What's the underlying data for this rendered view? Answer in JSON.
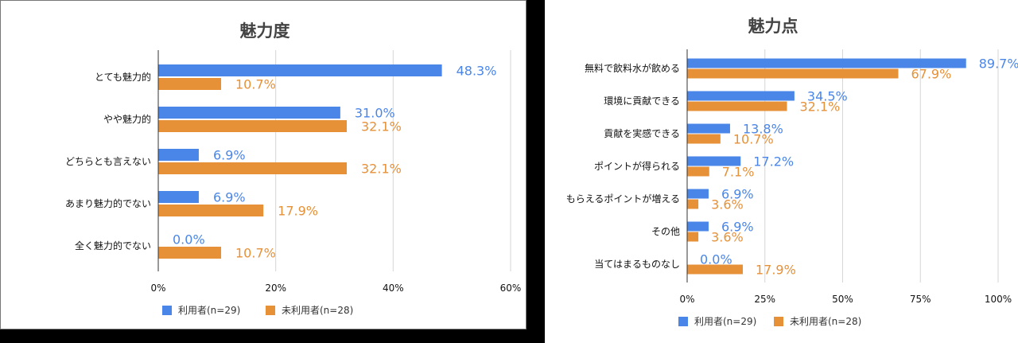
{
  "colors": {
    "users": "#4a86e8",
    "nonusers": "#e69138"
  },
  "chart_data": [
    {
      "type": "bar",
      "orientation": "horizontal",
      "title": "魅力度",
      "categories": [
        "とても魅力的",
        "やや魅力的",
        "どちらとも言えない",
        "あまり魅力的でない",
        "全く魅力的でない"
      ],
      "series": [
        {
          "name": "利用者(n=29)",
          "values": [
            48.3,
            31.0,
            6.9,
            6.9,
            0.0
          ],
          "labels": [
            "48.3%",
            "31.0%",
            "6.9%",
            "6.9%",
            "0.0%"
          ]
        },
        {
          "name": "未利用者(n=28)",
          "values": [
            10.7,
            32.1,
            32.1,
            17.9,
            10.7
          ],
          "labels": [
            "10.7%",
            "32.1%",
            "32.1%",
            "17.9%",
            "10.7%"
          ]
        }
      ],
      "xlim": [
        0,
        60
      ],
      "ticks": [
        0,
        20,
        40,
        60
      ],
      "tick_labels": [
        "0%",
        "20%",
        "40%",
        "60%"
      ],
      "grid": true,
      "legend": "bottom"
    },
    {
      "type": "bar",
      "orientation": "horizontal",
      "title": "魅力点",
      "categories": [
        "無料で飲料水が飲める",
        "環境に貢献できる",
        "貢献を実感できる",
        "ポイントが得られる",
        "もらえるポイントが増える",
        "その他",
        "当てはまるものなし"
      ],
      "series": [
        {
          "name": "利用者(n=29)",
          "values": [
            89.7,
            34.5,
            13.8,
            17.2,
            6.9,
            6.9,
            0.0
          ],
          "labels": [
            "89.7%",
            "34.5%",
            "13.8%",
            "17.2%",
            "6.9%",
            "6.9%",
            "0.0%"
          ]
        },
        {
          "name": "未利用者(n=28)",
          "values": [
            67.9,
            32.1,
            10.7,
            7.1,
            3.6,
            3.6,
            17.9
          ],
          "labels": [
            "67.9%",
            "32.1%",
            "10.7%",
            "7.1%",
            "3.6%",
            "3.6%",
            "17.9%"
          ]
        }
      ],
      "xlim": [
        0,
        100
      ],
      "ticks": [
        0,
        25,
        50,
        75,
        100
      ],
      "tick_labels": [
        "0%",
        "25%",
        "50%",
        "75%",
        "100%"
      ],
      "grid": true,
      "legend": "bottom"
    }
  ]
}
